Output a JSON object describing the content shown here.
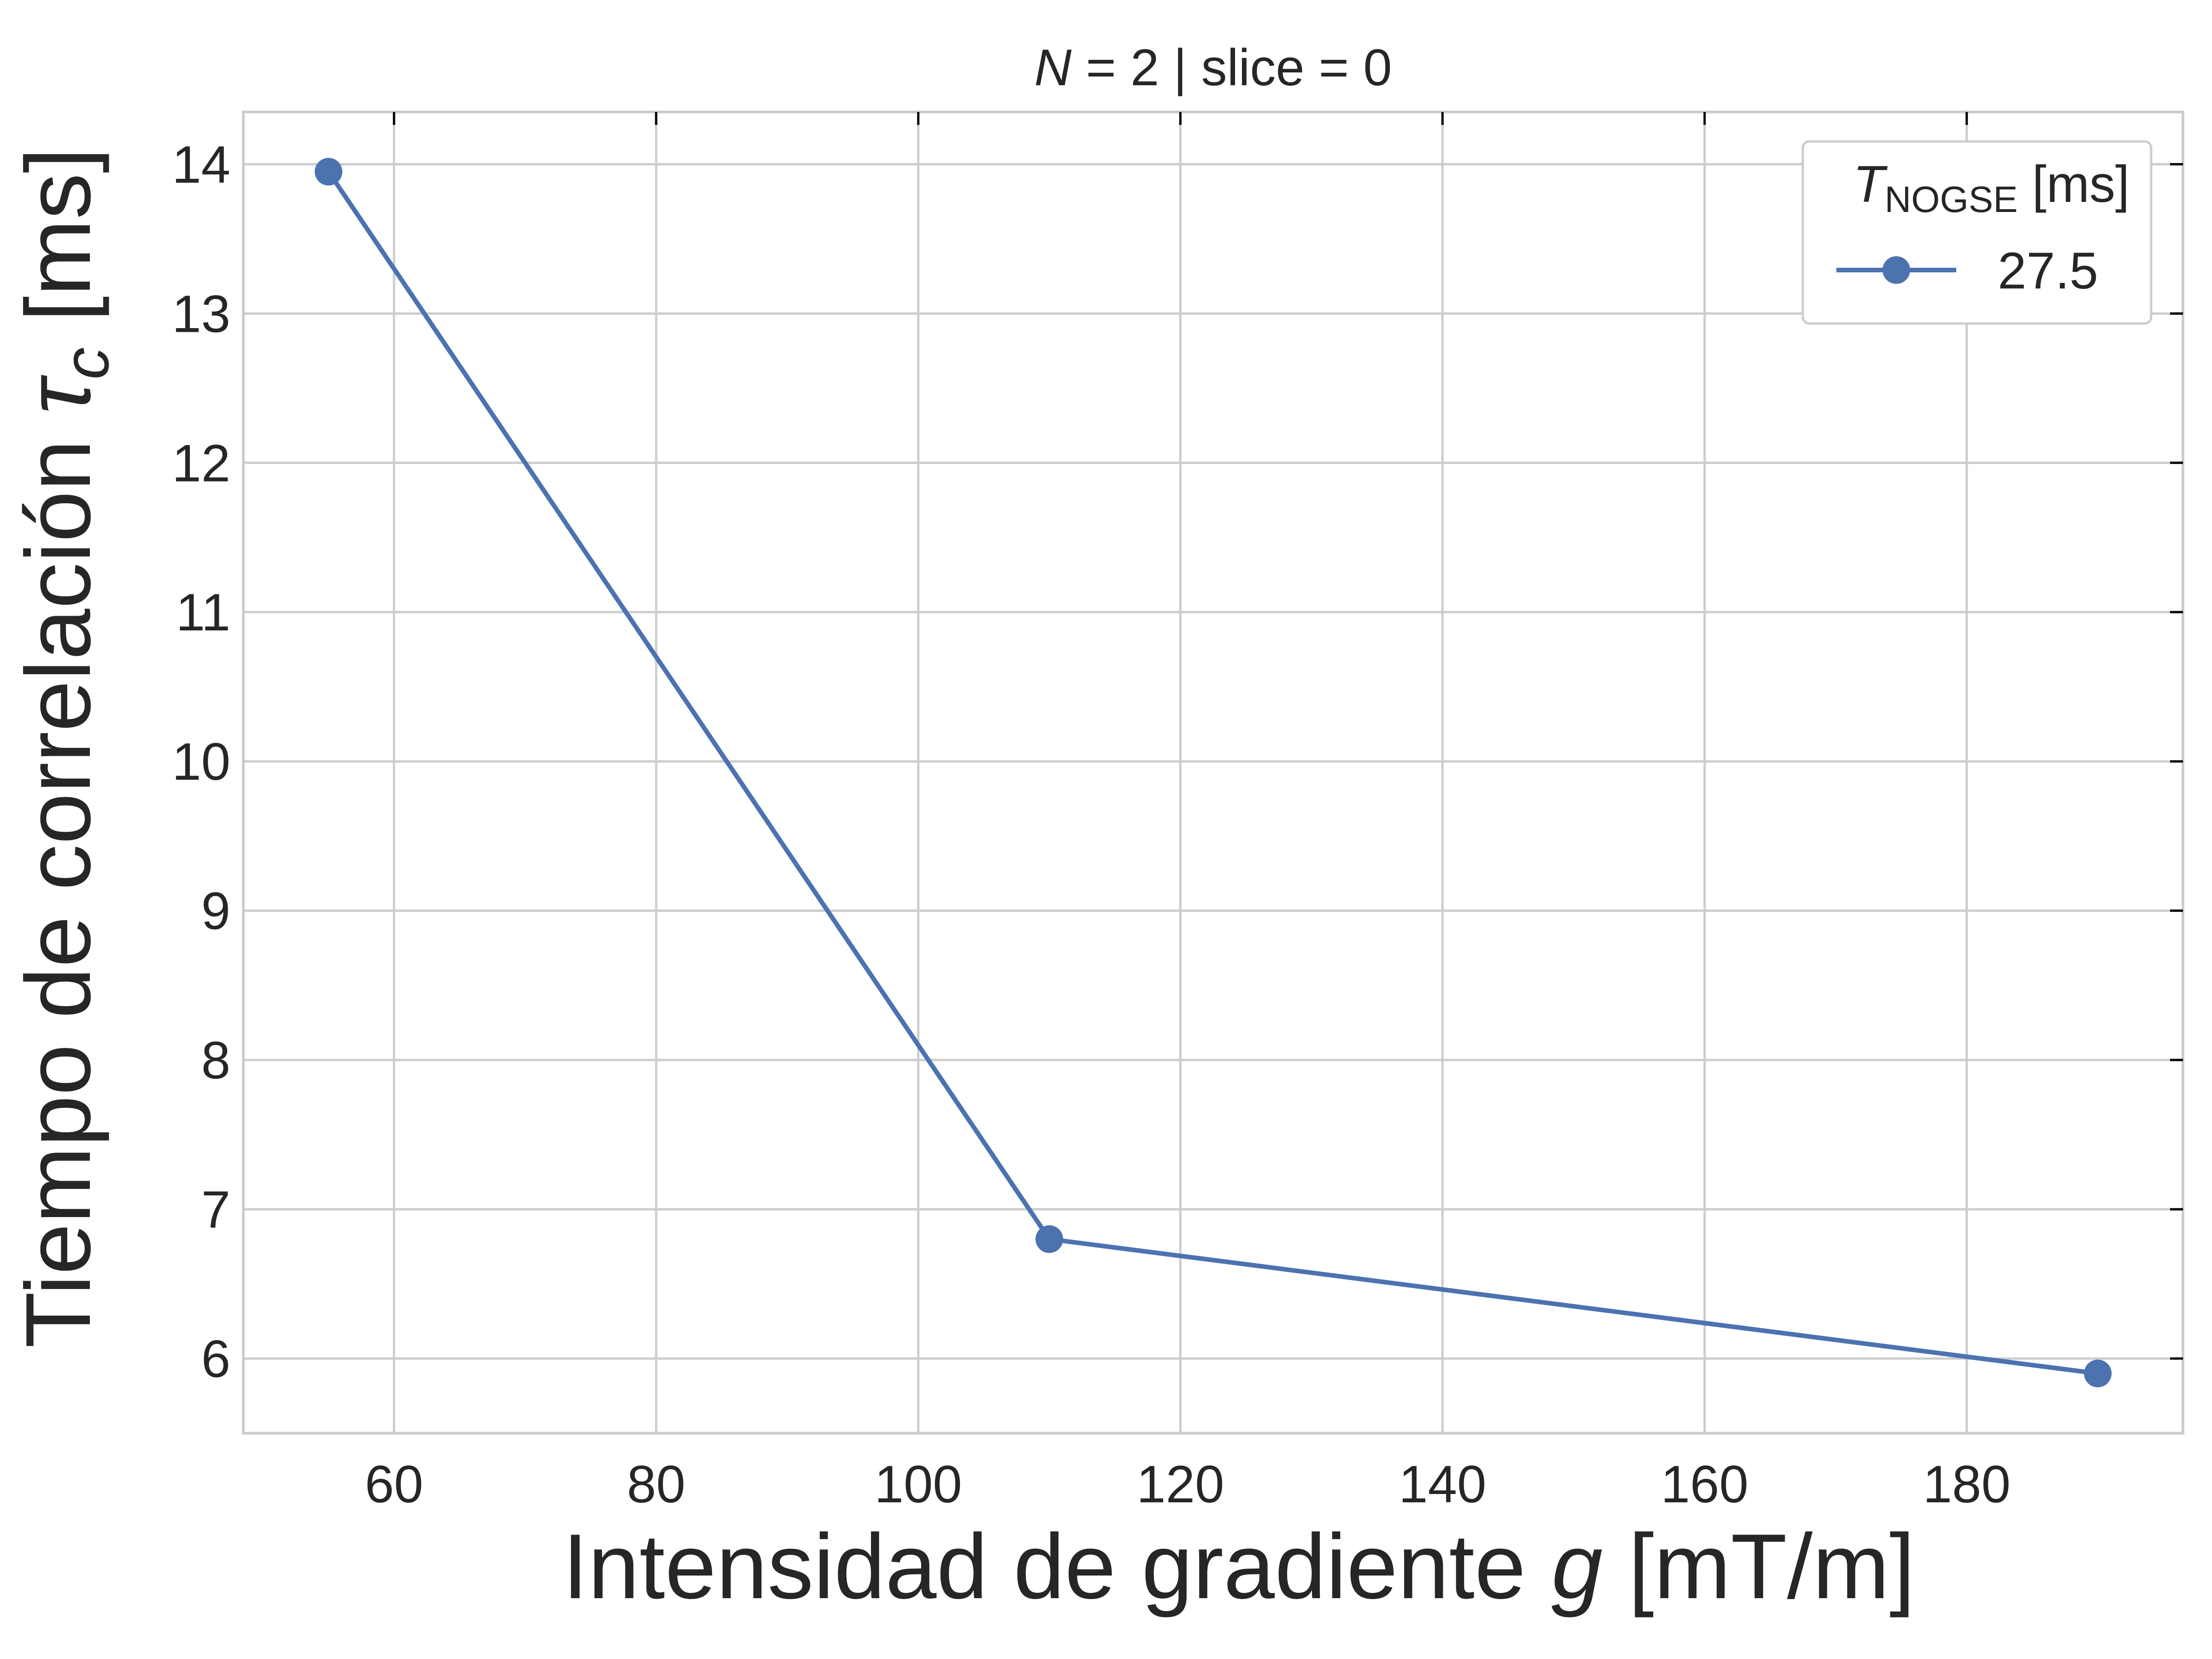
{
  "chart_data": {
    "type": "line",
    "title_parts": {
      "italic": "N",
      "rest": " = 2 | slice = 0"
    },
    "xlabel_parts": {
      "pre": "Intensidad de gradiente ",
      "italic": "g",
      "post": " [mT/m]"
    },
    "ylabel_parts": {
      "pre": "Tiempo de correlación ",
      "symbol": "τ",
      "sub": "c",
      "post": " [ms]"
    },
    "xlim": [
      48.5,
      196.5
    ],
    "ylim": [
      5.5,
      14.35
    ],
    "xticks": [
      60,
      80,
      100,
      120,
      140,
      160,
      180
    ],
    "yticks": [
      6,
      7,
      8,
      9,
      10,
      11,
      12,
      13,
      14
    ],
    "grid": true,
    "legend": {
      "placement": "top-right",
      "title_parts": {
        "italic": "T",
        "sub": "NOGSE",
        "post": " [ms]"
      }
    },
    "series": [
      {
        "name": "27.5",
        "color": "#4c72b0",
        "x": [
          55,
          110,
          190
        ],
        "y": [
          13.95,
          6.8,
          5.9
        ]
      }
    ]
  }
}
